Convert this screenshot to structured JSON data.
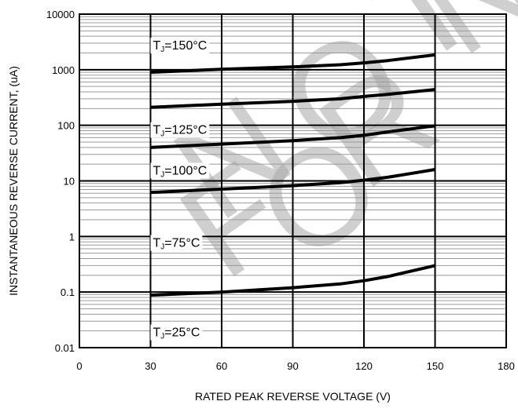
{
  "chart_data": {
    "type": "line",
    "ylabel": "INSTANTANEOUS REVERSE CURRENT, (uA)",
    "xlabel": "RATED PEAK REVERSE VOLTAGE (V)",
    "x_scale": "linear",
    "y_scale": "log",
    "xlim": [
      0,
      180
    ],
    "ylim": [
      0.01,
      10000
    ],
    "x_ticks": [
      "0",
      "30",
      "60",
      "90",
      "120",
      "150",
      "180"
    ],
    "y_ticks": [
      "10000",
      "1000",
      "100",
      "10",
      "1",
      "0.1",
      "0.01"
    ],
    "grid": true,
    "series": [
      {
        "x": [
          30,
          60,
          90,
          110,
          120,
          130,
          150
        ],
        "values": [
          900,
          1020,
          1120,
          1230,
          1330,
          1460,
          1850
        ]
      },
      {
        "x": [
          30,
          60,
          90,
          110,
          120,
          130,
          150
        ],
        "values": [
          210,
          240,
          270,
          300,
          330,
          360,
          440
        ]
      },
      {
        "x": [
          30,
          60,
          90,
          110,
          120,
          130,
          150
        ],
        "values": [
          40,
          46,
          53,
          60,
          66,
          76,
          98
        ]
      },
      {
        "x": [
          30,
          60,
          90,
          110,
          120,
          130,
          150
        ],
        "values": [
          6.2,
          7.1,
          8.2,
          9.3,
          10.3,
          11.6,
          16
        ]
      },
      {
        "x": [
          30,
          60,
          90,
          110,
          120,
          130,
          150
        ],
        "values": [
          0.088,
          0.1,
          0.12,
          0.14,
          0.16,
          0.19,
          0.3
        ]
      }
    ],
    "annotations": [
      {
        "t": "T",
        "sub": "J",
        "rest": "=150°C",
        "x": 31,
        "y": 2300
      },
      {
        "t": "T",
        "sub": "J",
        "rest": "=125°C",
        "x": 31,
        "y": 70
      },
      {
        "t": "T",
        "sub": "J",
        "rest": "=100°C",
        "x": 31,
        "y": 13
      },
      {
        "t": "T",
        "sub": "J",
        "rest": "=75°C",
        "x": 31,
        "y": 0.65
      },
      {
        "t": "T",
        "sub": "J",
        "rest": "=25°C",
        "x": 31,
        "y": 0.016
      }
    ]
  },
  "watermark": [
    "N",
    "O",
    "T",
    "F",
    "O",
    "R",
    "N"
  ]
}
